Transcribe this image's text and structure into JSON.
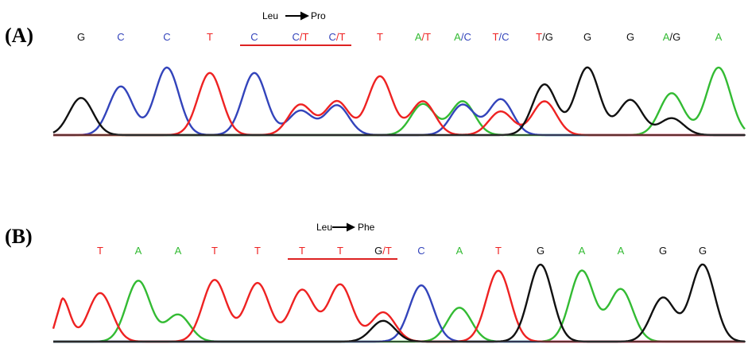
{
  "colors": {
    "A": "#33bb33",
    "C": "#3344bb",
    "G": "#111111",
    "T": "#ee2222",
    "underline": "#dd2222"
  },
  "panels": [
    {
      "label": "(A)",
      "mutation": {
        "from": "Leu",
        "to": "Pro",
        "span": [
          4,
          6
        ]
      },
      "bases": [
        "G",
        "C",
        "C",
        "T",
        "C",
        "C/T",
        "C/T",
        "T",
        "A/T",
        "A/C",
        "T/C",
        "T/G",
        "G",
        "G",
        "A/G",
        "A"
      ],
      "peaks": [
        {
          "h": {
            "G": 0.55
          }
        },
        {
          "h": {
            "C": 0.72
          }
        },
        {
          "h": {
            "C": 1.0
          }
        },
        {
          "h": {
            "T": 0.92
          }
        },
        {
          "h": {
            "C": 0.92
          }
        },
        {
          "h": {
            "T": 0.45,
            "C": 0.36
          }
        },
        {
          "h": {
            "T": 0.5,
            "C": 0.44
          }
        },
        {
          "h": {
            "T": 0.87
          }
        },
        {
          "h": {
            "T": 0.5,
            "A": 0.46
          }
        },
        {
          "h": {
            "A": 0.5,
            "C": 0.45
          }
        },
        {
          "h": {
            "C": 0.53,
            "T": 0.35
          }
        },
        {
          "h": {
            "G": 0.75,
            "T": 0.5
          }
        },
        {
          "h": {
            "G": 1.0
          }
        },
        {
          "h": {
            "G": 0.52
          }
        },
        {
          "h": {
            "A": 0.62,
            "G": 0.25
          }
        },
        {
          "h": {
            "A": 1.0
          }
        }
      ]
    },
    {
      "label": "(B)",
      "mutation": {
        "from": "Leu",
        "to": "Phe",
        "span": [
          5,
          7
        ]
      },
      "bases": [
        "T",
        "A",
        "A",
        "T",
        "T",
        "T",
        "T",
        "G/T",
        "C",
        "A",
        "T",
        "G",
        "A",
        "A",
        "G",
        "G"
      ],
      "peaks": [
        {
          "h": {
            "T": 0.63
          }
        },
        {
          "h": {
            "A": 0.79
          }
        },
        {
          "h": {
            "A": 0.35
          }
        },
        {
          "h": {
            "T": 0.8
          }
        },
        {
          "h": {
            "T": 0.76
          }
        },
        {
          "h": {
            "T": 0.67
          }
        },
        {
          "h": {
            "T": 0.74
          }
        },
        {
          "h": {
            "T": 0.38,
            "G": 0.27
          }
        },
        {
          "h": {
            "C": 0.73
          }
        },
        {
          "h": {
            "A": 0.44
          }
        },
        {
          "h": {
            "T": 0.92
          }
        },
        {
          "h": {
            "G": 1.0
          }
        },
        {
          "h": {
            "A": 0.92
          }
        },
        {
          "h": {
            "A": 0.68
          }
        },
        {
          "h": {
            "G": 0.57
          }
        },
        {
          "h": {
            "G": 1.0
          }
        }
      ]
    }
  ]
}
